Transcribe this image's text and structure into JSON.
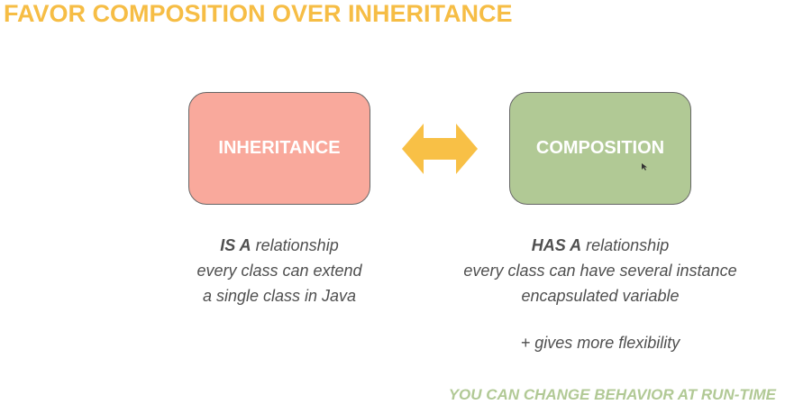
{
  "title": "FAVOR COMPOSITION OVER INHERITANCE",
  "left_box": {
    "label": "INHERITANCE",
    "color": "#f9a99c",
    "relation_bold": "IS A",
    "relation_rest": " relationship",
    "line2": "every class can extend",
    "line3": "a single class in Java"
  },
  "right_box": {
    "label": "COMPOSITION",
    "color": "#b1c995",
    "relation_bold": "HAS A",
    "relation_rest": " relationship",
    "line2": "every class can have several instance",
    "line3": "encapsulated variable"
  },
  "arrow": {
    "icon": "double-arrow-icon",
    "color": "#f8c046"
  },
  "flexibility_note": "+ gives more flexibility",
  "footer": "YOU CAN CHANGE BEHAVIOR AT RUN-TIME",
  "colors": {
    "title": "#f6bd45",
    "footer": "#b1c995",
    "text": "#4f4f4f"
  }
}
